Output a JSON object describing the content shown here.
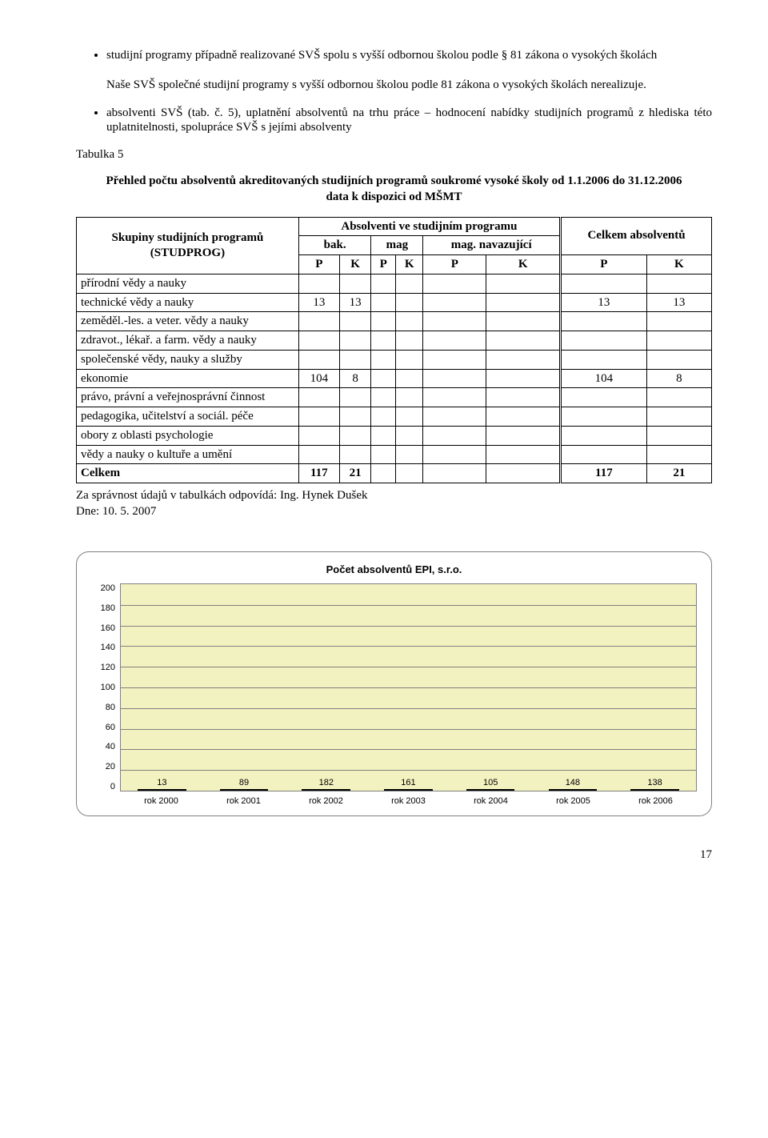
{
  "bullets_top": [
    "studijní programy případně realizované SVŠ spolu s vyšší odbornou školou podle § 81 zákona o vysokých školách"
  ],
  "para_nase": "Naše SVŠ společné studijní programy s vyšší odbornou školou podle 81 zákona o vysokých školách nerealizuje.",
  "sub_bullet": "absolventi SVŠ (tab. č. 5), uplatnění absolventů na trhu práce – hodnocení nabídky studijních programů z hlediska této uplatnitelnosti, spolupráce SVŠ s jejími absolventy",
  "tabulka_label": "Tabulka  5",
  "table_title_line1": "Přehled počtu absolventů akreditovaných studijních programů soukromé vysoké školy od 1.1.2006 do 31.12.2006",
  "table_title_line2": "data k dispozici od MŠMT",
  "headers": {
    "col0": "Skupiny studijních programů (STUDPROG)",
    "abs_group": "Absolventi ve studijním programu",
    "bak": "bak.",
    "mag": "mag",
    "mag_nav": "mag. navazující",
    "celkem": "Celkem absolventů",
    "P": "P",
    "K": "K"
  },
  "rows": [
    {
      "label": "přírodní vědy a nauky",
      "c": [
        "",
        "",
        "",
        "",
        "",
        "",
        "",
        ""
      ]
    },
    {
      "label": "technické vědy a nauky",
      "c": [
        "13",
        "13",
        "",
        "",
        "",
        "",
        "13",
        "13"
      ]
    },
    {
      "label": "zeměděl.-les. a veter. vědy a nauky",
      "c": [
        "",
        "",
        "",
        "",
        "",
        "",
        "",
        ""
      ]
    },
    {
      "label": "zdravot., lékař. a farm. vědy a nauky",
      "c": [
        "",
        "",
        "",
        "",
        "",
        "",
        "",
        ""
      ]
    },
    {
      "label": "společenské vědy, nauky a služby",
      "c": [
        "",
        "",
        "",
        "",
        "",
        "",
        "",
        ""
      ]
    },
    {
      "label": "ekonomie",
      "c": [
        "104",
        "8",
        "",
        "",
        "",
        "",
        "104",
        "8"
      ]
    },
    {
      "label": "právo, právní a veřejnosprávní činnost",
      "c": [
        "",
        "",
        "",
        "",
        "",
        "",
        "",
        ""
      ]
    },
    {
      "label": "pedagogika, učitelství a sociál. péče",
      "c": [
        "",
        "",
        "",
        "",
        "",
        "",
        "",
        ""
      ]
    },
    {
      "label": "obory z oblasti psychologie",
      "c": [
        "",
        "",
        "",
        "",
        "",
        "",
        "",
        ""
      ]
    },
    {
      "label": "vědy a nauky o kultuře a umění",
      "c": [
        "",
        "",
        "",
        "",
        "",
        "",
        "",
        ""
      ]
    }
  ],
  "total_row": {
    "label": "Celkem",
    "c": [
      "117",
      "21",
      "",
      "",
      "",
      "",
      "117",
      "21"
    ]
  },
  "footer1": "Za správnost údajů v tabulkách odpovídá: Ing. Hynek Dušek",
  "footer2": "Dne: 10. 5. 2007",
  "chart": {
    "title": "Počet absolventů EPI, s.r.o.",
    "ylim": [
      0,
      200
    ],
    "ytick_step": 20,
    "categories": [
      "rok 2000",
      "rok 2001",
      "rok 2002",
      "rok 2003",
      "rok 2004",
      "rok 2005",
      "rok 2006"
    ],
    "values": [
      13,
      89,
      182,
      161,
      105,
      148,
      138
    ],
    "bar_color": "#ff6600",
    "plot_bg": "#f2f2c0",
    "grid_color": "#808080",
    "title_fontsize": 13,
    "tick_fontsize": 11
  },
  "page_number": "17"
}
